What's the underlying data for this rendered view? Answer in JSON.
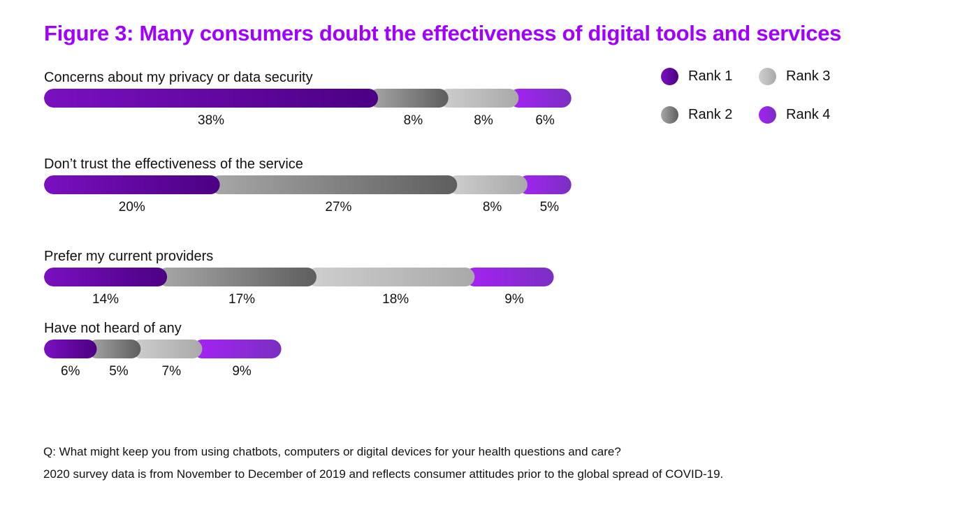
{
  "title": "Figure 3: Many consumers doubt the effectiveness of digital tools and services",
  "footnotes": [
    "Q: What might keep you from using chatbots, computers or digital devices for your health questions and care?",
    "2020 survey data is from November to December of 2019 and reflects consumer attitudes prior to the global spread of COVID-19."
  ],
  "colors": {
    "title": "#a100ff",
    "rank1": [
      "#7a10c0",
      "#4b0082"
    ],
    "rank2": [
      "#a8a8a8",
      "#5e5e5e"
    ],
    "rank3": [
      "#cfcfcf",
      "#a9a9a9"
    ],
    "rank4": [
      "#a622f5",
      "#7a2fc2"
    ]
  },
  "chart_data": {
    "type": "bar",
    "orientation": "horizontal",
    "stacked": true,
    "categories": [
      "Concerns about my privacy or data security",
      "Don’t trust the effectiveness of the service",
      "Prefer my current providers",
      "Have not heard of any"
    ],
    "series": [
      {
        "name": "Rank 1",
        "values": [
          38,
          20,
          14,
          6
        ],
        "labels": [
          "38%",
          "20%",
          "14%",
          "6%"
        ]
      },
      {
        "name": "Rank 2",
        "values": [
          8,
          27,
          17,
          5
        ],
        "labels": [
          "8%",
          "27%",
          "17%",
          "5%"
        ]
      },
      {
        "name": "Rank 3",
        "values": [
          8,
          8,
          18,
          7
        ],
        "labels": [
          "8%",
          "8%",
          "18%",
          "7%"
        ]
      },
      {
        "name": "Rank 4",
        "values": [
          6,
          5,
          9,
          9
        ],
        "labels": [
          "6%",
          "5%",
          "9%",
          "9%"
        ]
      }
    ],
    "value_unit": "%",
    "legend_position": "top-right",
    "grid": false
  }
}
